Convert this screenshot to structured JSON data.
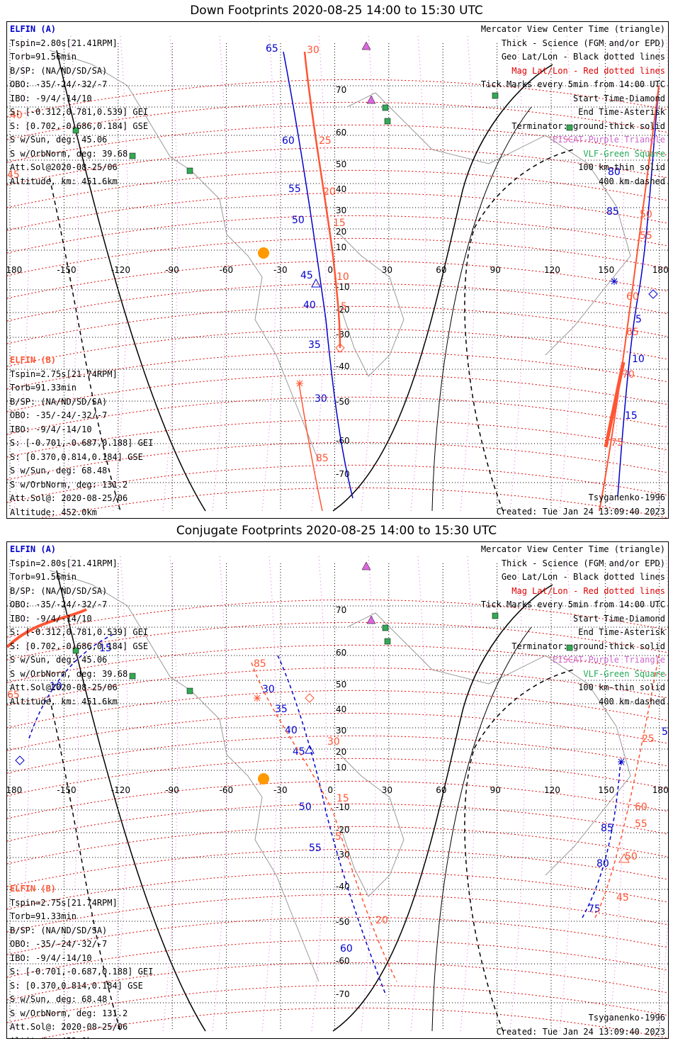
{
  "panels": [
    {
      "title": "Down Footprints 2020-08-25 14:00 to 15:30 UTC",
      "sat_a": [
        "ELFIN (A)",
        "Tspin=2.80s[21.41RPM]",
        "Torb=91.56min",
        "B/SP: (NA/ND/SD/SA)",
        "OBO: -35/-24/-32/-7",
        "IBO: -9/4/-14/10",
        "S: [-0.312,0.781,0.539] GEI",
        "S: [0.702,-0.686,0.184] GSE",
        "S w/Sun, deg: 45.06",
        "S w/OrbNorm, deg: 39.68",
        "Att.Sol@2020-08-25/06",
        "Altitude, km: 451.6km"
      ],
      "sat_b": [
        "ELFIN (B)",
        "Tspin=2.75s[21.74RPM]",
        "Torb=91.33min",
        "B/SP: (NA/ND/SD/SA)",
        "OBO: -35/-24/-32/-7",
        "IBO: -9/4/-14/10",
        "S: [-0.701,-0.687,0.188] GEI",
        "S: [0.370,0.814,0.184] GSE",
        "S w/Sun, deg: 68.48",
        "S w/OrbNorm, deg: 131.2",
        "Att.Sol@: 2020-08-25/06",
        "Altitude: 452.0km"
      ],
      "legend": [
        "Mercator View Center Time (triangle)",
        "Thick - Science (FGM and/or EPD)",
        "Geo Lat/Lon - Black dotted lines",
        "Mag Lat/Lon - Red dotted lines",
        "Tick Marks every 5min from 14:00 UTC",
        "Start Time-Diamond",
        "End Time-Asterisk",
        "Terminator: ground-thick solid",
        "EISCAT-Purple Triangle",
        "VLF-Green Square",
        "100 km-thin solid",
        "400 km-dashed"
      ],
      "credit": "Tsyganenko-1996",
      "created": "Created: Tue Jan 24 13:09:40 2023",
      "lon_labels": [
        "-180",
        "-150",
        "-120",
        "-90",
        "-60",
        "-30",
        "0",
        "30",
        "60",
        "90",
        "120",
        "150",
        "180"
      ],
      "lat_labels": [
        "70",
        "60",
        "50",
        "40",
        "30",
        "20",
        "10",
        "-10",
        "-20",
        "-30",
        "-40",
        "-50",
        "-60",
        "-70"
      ],
      "mag_lat_left": [
        "40",
        "45"
      ],
      "track_a_labels": [
        "65",
        "60",
        "55",
        "50",
        "45",
        "40",
        "35",
        "30",
        "5",
        "10",
        "15",
        "80",
        "85"
      ],
      "track_b_labels": [
        "30",
        "25",
        "20",
        "15",
        "10",
        "5",
        "85",
        "50",
        "55",
        "60",
        "65",
        "70",
        "75"
      ]
    },
    {
      "title": "Conjugate Footprints 2020-08-25 14:00 to 15:30 UTC",
      "sat_a": [
        "ELFIN (A)",
        "Tspin=2.80s[21.41RPM]",
        "Torb=91.56min",
        "B/SP: (NA/ND/SD/SA)",
        "OBO: -35/-24/-32/-7",
        "IBO: -9/4/-14/10",
        "S: [-0.312,0.781,0.539] GEI",
        "S: [0.702,-0.686,0.184] GSE",
        "S w/Sun, deg: 45.06",
        "S w/OrbNorm, deg: 39.68",
        "Att.Sol@2020-08-25/06",
        "Altitude, km: 451.6km"
      ],
      "sat_b": [
        "ELFIN (B)",
        "Tspin=2.75s[21.74RPM]",
        "Torb=91.33min",
        "B/SP: (NA/ND/SD/SA)",
        "OBO: -35/-24/-32/-7",
        "IBO: -9/4/-14/10",
        "S: [-0.701,-0.687,0.188] GEI",
        "S: [0.370,0.814,0.184] GSE",
        "S w/Sun, deg: 68.48",
        "S w/OrbNorm, deg: 131.2",
        "Att.Sol@: 2020-08-25/06",
        "Altitude: 452.0km"
      ],
      "legend": [
        "Mercator View Center Time (triangle)",
        "Thick - Science (FGM and/or EPD)",
        "Geo Lat/Lon - Black dotted lines",
        "Mag Lat/Lon - Red dotted lines",
        "Tick Marks every 5min from 14:00 UTC",
        "Start Time-Diamond",
        "End Time-Asterisk",
        "Terminator: ground-thick solid",
        "EISCAT-Purple Triangle",
        "VLF-Green Square",
        "100 km-thin solid",
        "400 km-dashed"
      ],
      "credit": "Tsyganenko-1996",
      "created": "Created: Tue Jan 24 13:09:40 2023",
      "lon_labels": [
        "-180",
        "-150",
        "-120",
        "-90",
        "-60",
        "-30",
        "0",
        "30",
        "60",
        "90",
        "120",
        "150",
        "180"
      ],
      "lat_labels": [
        "70",
        "60",
        "50",
        "40",
        "30",
        "20",
        "10",
        "-10",
        "-20",
        "-30",
        "-40",
        "-50",
        "-60",
        "-70"
      ],
      "mag_lat_left": [
        "65"
      ],
      "track_a_labels": [
        "30",
        "35",
        "40",
        "45",
        "50",
        "55",
        "60",
        "75",
        "80",
        "85",
        "5",
        "10",
        "15"
      ],
      "track_b_labels": [
        "85",
        "30",
        "15",
        "5",
        "20",
        "25",
        "60",
        "55",
        "50",
        "45",
        "40"
      ]
    }
  ],
  "colors": {
    "sat_a": "#0000cc",
    "sat_b": "#ff5533",
    "mag_grid": "#e00000",
    "geo_grid": "#000000",
    "eiscat": "#cc66cc",
    "vlf": "#33aa55",
    "sun": "#ff9900"
  }
}
